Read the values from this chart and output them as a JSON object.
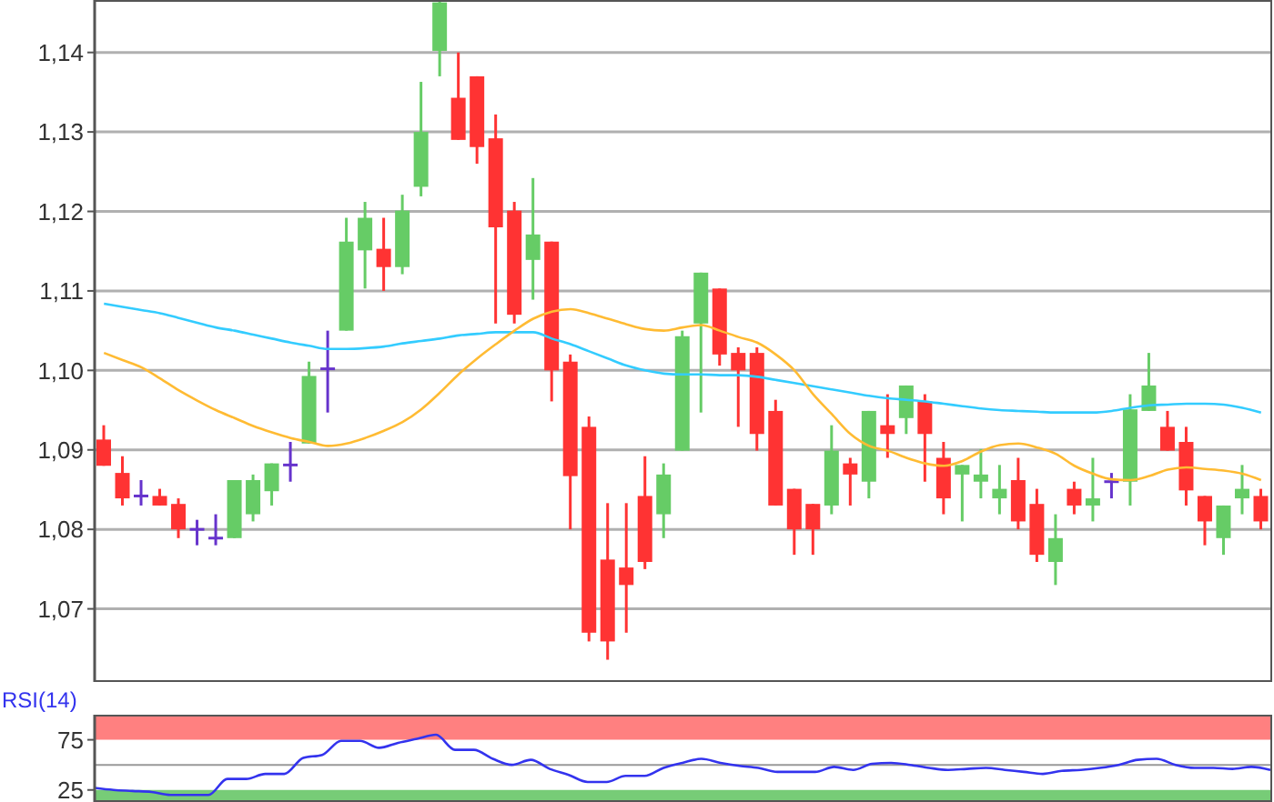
{
  "chart_data": [
    {
      "type": "candlestick",
      "categories": [
        null,
        null,
        null,
        null,
        null,
        null,
        null,
        null,
        null,
        null,
        null,
        null,
        null,
        null,
        null,
        null,
        null,
        null,
        null,
        null,
        null,
        null,
        null,
        null,
        null,
        null,
        null,
        null,
        null,
        null,
        null,
        null,
        null,
        null,
        null,
        null,
        null,
        null,
        null,
        null,
        null,
        null,
        null,
        null,
        null,
        null,
        null,
        null,
        null,
        null,
        null,
        null,
        null,
        null,
        null,
        null,
        null,
        null,
        null,
        null,
        null,
        null,
        null
      ],
      "ohlc": [
        [
          1.0913,
          1.0931,
          1.088,
          1.088
        ],
        [
          1.0871,
          1.0892,
          1.083,
          1.0839
        ],
        [
          1.0842,
          1.0862,
          1.083,
          1.0842
        ],
        [
          1.0842,
          1.0851,
          1.083,
          1.083
        ],
        [
          1.0832,
          1.0839,
          1.0789,
          1.08
        ],
        [
          1.08,
          1.0812,
          1.078,
          1.08
        ],
        [
          1.0789,
          1.0819,
          1.078,
          1.0789
        ],
        [
          1.0789,
          1.0862,
          1.0789,
          1.0862
        ],
        [
          1.0819,
          1.0869,
          1.081,
          1.0862
        ],
        [
          1.0848,
          1.0883,
          1.083,
          1.0883
        ],
        [
          1.0881,
          1.091,
          1.086,
          1.0881
        ],
        [
          1.0908,
          1.1011,
          1.0908,
          1.0993
        ],
        [
          1.1002,
          1.105,
          1.0947,
          1.1002
        ],
        [
          1.105,
          1.1192,
          1.105,
          1.1162
        ],
        [
          1.1151,
          1.1212,
          1.1103,
          1.1192
        ],
        [
          1.1153,
          1.1192,
          1.11,
          1.113
        ],
        [
          1.113,
          1.1221,
          1.1121,
          1.1201
        ],
        [
          1.1231,
          1.1363,
          1.1219,
          1.13
        ],
        [
          1.1402,
          1.1466,
          1.137,
          1.1463
        ],
        [
          1.1343,
          1.14,
          1.129,
          1.129
        ],
        [
          1.137,
          1.137,
          1.126,
          1.1281
        ],
        [
          1.1292,
          1.1322,
          1.1059,
          1.118
        ],
        [
          1.1201,
          1.1212,
          1.1059,
          1.107
        ],
        [
          1.1139,
          1.1242,
          1.1089,
          1.1171
        ],
        [
          1.1162,
          1.1162,
          1.0961,
          1.1
        ],
        [
          1.1011,
          1.102,
          1.08,
          1.0867
        ],
        [
          1.0929,
          1.0942,
          1.0659,
          1.067
        ],
        [
          1.0762,
          1.0833,
          1.0636,
          1.0659
        ],
        [
          1.0752,
          1.0833,
          1.067,
          1.073
        ],
        [
          1.0842,
          1.0892,
          1.075,
          1.0759
        ],
        [
          1.0819,
          1.0883,
          1.0789,
          1.0869
        ],
        [
          1.0899,
          1.105,
          1.0899,
          1.1043
        ],
        [
          1.1059,
          1.1123,
          1.0947,
          1.1123
        ],
        [
          1.1103,
          1.1103,
          1.1006,
          1.102
        ],
        [
          1.1022,
          1.1029,
          1.0929,
          1.1
        ],
        [
          1.1022,
          1.1029,
          1.0899,
          1.092
        ],
        [
          1.0949,
          1.0963,
          1.083,
          1.083
        ],
        [
          1.0851,
          1.0851,
          1.0768,
          1.08
        ],
        [
          1.0832,
          1.0832,
          1.0768,
          1.08
        ],
        [
          1.083,
          1.0931,
          1.0819,
          1.0899
        ],
        [
          1.0883,
          1.089,
          1.083,
          1.0869
        ],
        [
          1.086,
          1.0949,
          1.0839,
          1.0949
        ],
        [
          1.0931,
          1.097,
          1.089,
          1.092
        ],
        [
          1.094,
          1.0981,
          1.092,
          1.0981
        ],
        [
          1.0961,
          1.097,
          1.086,
          1.092
        ],
        [
          1.089,
          1.091,
          1.0819,
          1.0839
        ],
        [
          1.0869,
          1.0881,
          1.081,
          1.0881
        ],
        [
          1.086,
          1.0901,
          1.0839,
          1.0869
        ],
        [
          1.0839,
          1.0881,
          1.0819,
          1.0851
        ],
        [
          1.0862,
          1.089,
          1.08,
          1.081
        ],
        [
          1.0832,
          1.0851,
          1.0759,
          1.0768
        ],
        [
          1.0759,
          1.0819,
          1.073,
          1.0789
        ],
        [
          1.0851,
          1.086,
          1.0819,
          1.083
        ],
        [
          1.083,
          1.089,
          1.081,
          1.0839
        ],
        [
          1.086,
          1.0871,
          1.0839,
          1.086
        ],
        [
          1.086,
          1.097,
          1.083,
          1.0951
        ],
        [
          1.0949,
          1.1022,
          1.0949,
          1.0981
        ],
        [
          1.0929,
          1.0949,
          1.0899,
          1.0899
        ],
        [
          1.091,
          1.0929,
          1.083,
          1.0849
        ],
        [
          1.0842,
          1.0842,
          1.078,
          1.081
        ],
        [
          1.0789,
          1.083,
          1.0768,
          1.083
        ],
        [
          1.0839,
          1.0881,
          1.0819,
          1.0851
        ],
        [
          1.0842,
          1.0851,
          1.08,
          1.081
        ]
      ],
      "colors": [
        "#ff3333",
        "#ff3333",
        "#6633cc",
        "#ff3333",
        "#ff3333",
        "#6633cc",
        "#6633cc",
        "#66cc66",
        "#66cc66",
        "#66cc66",
        "#6633cc",
        "#66cc66",
        "#6633cc",
        "#66cc66",
        "#66cc66",
        "#ff3333",
        "#66cc66",
        "#66cc66",
        "#66cc66",
        "#ff3333",
        "#ff3333",
        "#ff3333",
        "#ff3333",
        "#66cc66",
        "#ff3333",
        "#ff3333",
        "#ff3333",
        "#ff3333",
        "#ff3333",
        "#ff3333",
        "#66cc66",
        "#66cc66",
        "#66cc66",
        "#ff3333",
        "#ff3333",
        "#ff3333",
        "#ff3333",
        "#ff3333",
        "#ff3333",
        "#66cc66",
        "#ff3333",
        "#66cc66",
        "#ff3333",
        "#66cc66",
        "#ff3333",
        "#ff3333",
        "#66cc66",
        "#66cc66",
        "#66cc66",
        "#ff3333",
        "#ff3333",
        "#66cc66",
        "#ff3333",
        "#66cc66",
        "#6633cc",
        "#66cc66",
        "#66cc66",
        "#ff3333",
        "#ff3333",
        "#ff3333",
        "#66cc66",
        "#66cc66",
        "#ff3333"
      ],
      "series": [
        {
          "type": "line",
          "color": "#33ccff",
          "values": [
            1.1084,
            1.108,
            1.1076,
            1.1072,
            1.1066,
            1.106,
            1.1054,
            1.105,
            1.1045,
            1.104,
            1.1035,
            1.1031,
            1.1027,
            1.1027,
            1.1028,
            1.103,
            1.1034,
            1.1037,
            1.104,
            1.1044,
            1.1046,
            1.1048,
            1.1048,
            1.1048,
            1.104,
            1.1033,
            1.1024,
            1.1015,
            1.1006,
            1.1,
            1.0996,
            1.0995,
            1.0995,
            1.0994,
            1.0994,
            1.0992,
            1.0988,
            1.0984,
            1.098,
            1.0976,
            1.0972,
            1.0968,
            1.0965,
            1.0963,
            1.0961,
            1.0958,
            1.0955,
            1.0952,
            1.095,
            1.0949,
            1.0948,
            1.0947,
            1.0947,
            1.0947,
            1.0949,
            1.0953,
            1.0956,
            1.0957,
            1.0958,
            1.0958,
            1.0957,
            1.0953,
            1.0947
          ]
        },
        {
          "type": "line",
          "color": "#ffbb33",
          "values": [
            1.1022,
            1.1013,
            1.1004,
            1.099,
            1.0975,
            1.0962,
            1.095,
            1.094,
            1.093,
            1.0922,
            1.0915,
            1.091,
            1.0905,
            1.0908,
            1.0915,
            1.0924,
            1.0935,
            1.0951,
            1.0972,
            1.0995,
            1.1015,
            1.1033,
            1.105,
            1.1065,
            1.1074,
            1.1077,
            1.1072,
            1.1065,
            1.1058,
            1.1052,
            1.105,
            1.1054,
            1.1057,
            1.105,
            1.1042,
            1.1035,
            1.102,
            1.1,
            1.097,
            1.0945,
            1.092,
            1.0905,
            1.0899,
            1.089,
            1.0883,
            1.088,
            1.0886,
            1.0898,
            1.0906,
            1.0908,
            1.0903,
            1.0895,
            1.088,
            1.087,
            1.0863,
            1.0862,
            1.0867,
            1.0875,
            1.0878,
            1.0876,
            1.0874,
            1.087,
            1.0862
          ]
        }
      ],
      "ylim": [
        1.0608,
        1.1466
      ],
      "yticks": [
        {
          "value": 1.07,
          "label": "1,07"
        },
        {
          "value": 1.08,
          "label": "1,08"
        },
        {
          "value": 1.09,
          "label": "1,09"
        },
        {
          "value": 1.1,
          "label": "1,10"
        },
        {
          "value": 1.11,
          "label": "1,11"
        },
        {
          "value": 1.12,
          "label": "1,12"
        },
        {
          "value": 1.13,
          "label": "1,13"
        },
        {
          "value": 1.14,
          "label": "1,14"
        }
      ],
      "grid": "y",
      "tick_labels": "y"
    },
    {
      "type": "line",
      "title": "RSI(14)",
      "categories": [
        null,
        null,
        null,
        null,
        null,
        null,
        null,
        null,
        null,
        null,
        null,
        null,
        null,
        null,
        null,
        null,
        null,
        null,
        null,
        null,
        null,
        null,
        null,
        null,
        null,
        null,
        null,
        null,
        null,
        null,
        null,
        null,
        null,
        null,
        null,
        null,
        null,
        null,
        null,
        null,
        null,
        null,
        null,
        null,
        null,
        null,
        null,
        null,
        null,
        null,
        null,
        null,
        null,
        null,
        null,
        null,
        null,
        null,
        null,
        null,
        null,
        null,
        null
      ],
      "series": [
        {
          "color": "#3333ee",
          "values": [
            27,
            25,
            24,
            23,
            20,
            20,
            20,
            36,
            36,
            41,
            41,
            57,
            60,
            74,
            74,
            67,
            72,
            76,
            80,
            65,
            65,
            56,
            50,
            55,
            46,
            40,
            33,
            33,
            39,
            39,
            47,
            52,
            56,
            52,
            49,
            47,
            43,
            43,
            43,
            48,
            45,
            51,
            52,
            50,
            47,
            45,
            46,
            47,
            45,
            43,
            41,
            44,
            45,
            47,
            50,
            55,
            56,
            50,
            47,
            47,
            46,
            48,
            45
          ]
        }
      ],
      "ylim": [
        13,
        100
      ],
      "yticks": [
        25,
        75
      ],
      "bands": [
        {
          "axis": "y",
          "from": 75,
          "to": 100,
          "color": "#ff8080"
        },
        {
          "axis": "y",
          "from": 13,
          "to": 25,
          "color": "#77cc77"
        }
      ],
      "ref_lines": [
        {
          "axis": "y",
          "value": 50,
          "color": "#999999"
        }
      ],
      "tick_labels": "y"
    }
  ]
}
